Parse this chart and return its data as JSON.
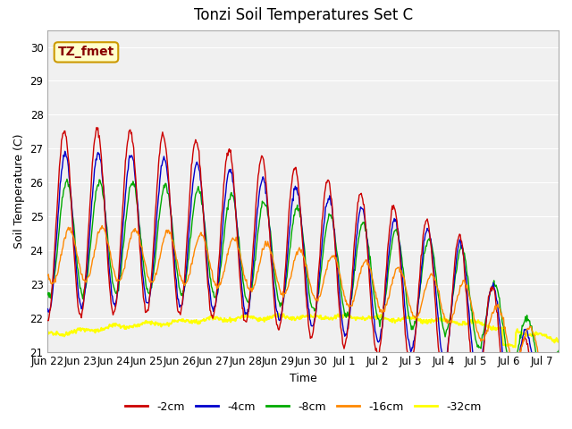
{
  "title": "Tonzi Soil Temperatures Set C",
  "xlabel": "Time",
  "ylabel": "Soil Temperature (C)",
  "annotation": "TZ_fmet",
  "ylim": [
    21.0,
    30.5
  ],
  "yticks": [
    21.0,
    22.0,
    23.0,
    24.0,
    25.0,
    26.0,
    27.0,
    28.0,
    29.0,
    30.0
  ],
  "xtick_labels": [
    "Jun 22",
    "Jun 23",
    "Jun 24",
    "Jun 25",
    "Jun 26",
    "Jun 27",
    "Jun 28",
    "Jun 29",
    "Jun 30",
    "Jul 1",
    "Jul 2",
    "Jul 3",
    "Jul 4",
    "Jul 5",
    "Jul 6",
    "Jul 7"
  ],
  "series_colors": {
    "-2cm": "#cc0000",
    "-4cm": "#0000cc",
    "-8cm": "#00aa00",
    "-16cm": "#ff8800",
    "-32cm": "#ffff00"
  },
  "background_color": "#e8e8e8",
  "plot_bg_color": "#f0f0f0",
  "legend_labels": [
    "-2cm",
    "-4cm",
    "-8cm",
    "-16cm",
    "-32cm"
  ],
  "n_days": 15.5,
  "samples_per_day": 48,
  "annotation_facecolor": "#ffffcc",
  "annotation_edgecolor": "#cc9900",
  "annotation_textcolor": "#880000"
}
